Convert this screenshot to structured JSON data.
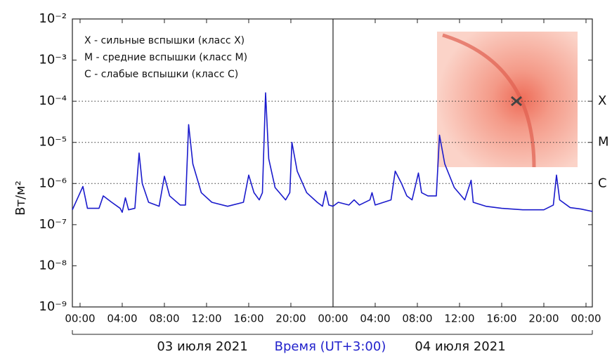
{
  "chart_data": {
    "type": "line",
    "log_scale": true,
    "ylabel": "Вт/м²",
    "xlabel": "Время (UT+3:00)",
    "date_labels": [
      "03 июля 2021",
      "04 июля 2021"
    ],
    "legend_lines": [
      "X - сильные вспышки (класс X)",
      "M - средние вспышки (класс M)",
      "C - слабые вспышки (класс C)"
    ],
    "levels": [
      {
        "value": 0.0001,
        "label": "X"
      },
      {
        "value": 1e-05,
        "label": "M"
      },
      {
        "value": 1e-06,
        "label": "C"
      }
    ],
    "vline_x": 24,
    "xlim": [
      -0.73,
      48.6
    ],
    "ylim": [
      1e-09,
      0.01
    ],
    "xticks": [
      {
        "value": 0,
        "label": "00:00"
      },
      {
        "value": 4,
        "label": "04:00"
      },
      {
        "value": 8,
        "label": "08:00"
      },
      {
        "value": 12,
        "label": "12:00"
      },
      {
        "value": 16,
        "label": "16:00"
      },
      {
        "value": 20,
        "label": "20:00"
      },
      {
        "value": 24,
        "label": "00:00"
      },
      {
        "value": 28,
        "label": "04:00"
      },
      {
        "value": 32,
        "label": "08:00"
      },
      {
        "value": 36,
        "label": "12:00"
      },
      {
        "value": 40,
        "label": "16:00"
      },
      {
        "value": 44,
        "label": "20:00"
      },
      {
        "value": 48,
        "label": "00:00"
      }
    ],
    "yticks": [
      {
        "value": 0.01,
        "label": "10⁻²"
      },
      {
        "value": 0.001,
        "label": "10⁻³"
      },
      {
        "value": 0.0001,
        "label": "10⁻⁴"
      },
      {
        "value": 1e-05,
        "label": "10⁻⁵"
      },
      {
        "value": 1e-06,
        "label": "10⁻⁶"
      },
      {
        "value": 1e-07,
        "label": "10⁻⁷"
      },
      {
        "value": 1e-08,
        "label": "10⁻⁸"
      },
      {
        "value": 1e-09,
        "label": "10⁻⁹"
      }
    ],
    "color": "#1a1acc",
    "x": [
      -0.73,
      0.27,
      0.7,
      1.8,
      2.2,
      3,
      3.8,
      4,
      4.3,
      4.6,
      5.2,
      5.6,
      5.9,
      6.5,
      7.5,
      8,
      8.5,
      9.5,
      10,
      10.3,
      10.7,
      11.5,
      12.5,
      14,
      15.5,
      16,
      16.5,
      17,
      17.3,
      17.6,
      17.9,
      18.5,
      19.5,
      19.9,
      20.1,
      20.6,
      21.5,
      22.5,
      23,
      23.3,
      23.6,
      24,
      24.5,
      25.5,
      26,
      26.5,
      27.5,
      27.7,
      28,
      29.5,
      29.9,
      30.5,
      31,
      31.5,
      32.1,
      32.4,
      33,
      33.8,
      34.1,
      34.6,
      35.5,
      36.5,
      37.1,
      37.3,
      38.5,
      40,
      42,
      44,
      44.9,
      45.2,
      45.5,
      46.5,
      47.5,
      48.6
    ],
    "values": [
      2.3e-07,
      8.5e-07,
      2.5e-07,
      2.5e-07,
      5e-07,
      3.5e-07,
      2.5e-07,
      2e-07,
      4.5e-07,
      2.3e-07,
      2.5e-07,
      5.5e-06,
      1e-06,
      3.5e-07,
      2.8e-07,
      1.5e-06,
      5e-07,
      3e-07,
      3e-07,
      2.7e-05,
      3e-06,
      6e-07,
      3.5e-07,
      2.8e-07,
      3.5e-07,
      1.6e-06,
      6e-07,
      4e-07,
      6e-07,
      0.00016,
      4e-06,
      8e-07,
      4e-07,
      6e-07,
      1e-05,
      2e-06,
      6e-07,
      3.5e-07,
      2.8e-07,
      6.5e-07,
      3e-07,
      2.8e-07,
      3.5e-07,
      3e-07,
      4e-07,
      3e-07,
      4e-07,
      6e-07,
      3e-07,
      4e-07,
      2e-06,
      1e-06,
      5e-07,
      4e-07,
      1.8e-06,
      6e-07,
      5e-07,
      5e-07,
      1.5e-05,
      3e-06,
      8e-07,
      4e-07,
      1.2e-06,
      3.5e-07,
      2.8e-07,
      2.5e-07,
      2.3e-07,
      2.3e-07,
      3e-07,
      1.6e-06,
      4e-07,
      2.6e-07,
      2.4e-07,
      2.1e-07
    ]
  }
}
